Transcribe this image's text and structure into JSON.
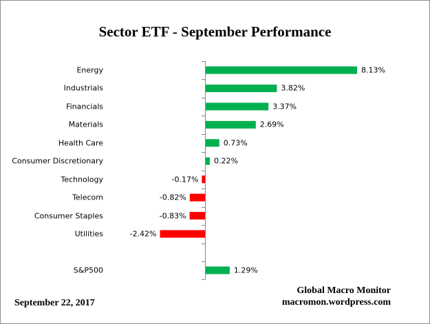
{
  "chart_data": {
    "type": "bar",
    "orientation": "horizontal",
    "title": "Sector ETF - September Performance",
    "categories": [
      "Energy",
      "Industrials",
      "Financials",
      "Materials",
      "Health Care",
      "Consumer Discretionary",
      "Technology",
      "Telecom",
      "Consumer Staples",
      "Utilities",
      "",
      "S&P500"
    ],
    "values": [
      8.13,
      3.82,
      3.37,
      2.69,
      0.73,
      0.22,
      -0.17,
      -0.82,
      -0.83,
      -2.42,
      null,
      1.29
    ],
    "data_labels": [
      "8.13%",
      "3.82%",
      "3.37%",
      "2.69%",
      "0.73%",
      "0.22%",
      "-0.17%",
      "-0.82%",
      "-0.83%",
      "-2.42%",
      "",
      "1.29%"
    ],
    "unit": "%",
    "xlim": [
      -3,
      11
    ],
    "grid": false,
    "legend": "none",
    "colors": {
      "positive": "#00b050",
      "negative": "#ff0000"
    }
  },
  "footer": {
    "source_line1": "Global Macro Monitor",
    "source_line2": "macromon.wordpress.com",
    "date": "September 22,  2017"
  }
}
